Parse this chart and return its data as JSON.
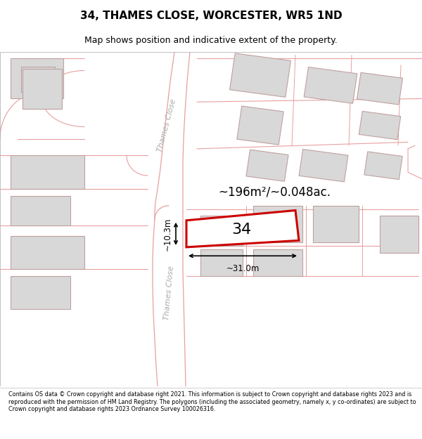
{
  "title": "34, THAMES CLOSE, WORCESTER, WR5 1ND",
  "subtitle": "Map shows position and indicative extent of the property.",
  "footer": "Contains OS data © Crown copyright and database right 2021. This information is subject to Crown copyright and database rights 2023 and is reproduced with the permission of HM Land Registry. The polygons (including the associated geometry, namely x, y co-ordinates) are subject to Crown copyright and database rights 2023 Ordnance Survey 100026316.",
  "bg_color": "#f5f5f5",
  "road_line_color": "#e8a0a0",
  "road_label_color": "#aaaaaa",
  "building_fill": "#d8d8d8",
  "building_edge": "#c0a0a0",
  "highlight_fill": "#ffffff",
  "highlight_edge": "#cc0000",
  "highlight_edge_width": 2.2,
  "area_label": "~196m²/~0.048ac.",
  "plot_number": "34",
  "dim_width": "~31.0m",
  "dim_height": "~10.3m",
  "road_label_upper": "Thames Close",
  "road_label_lower": "Thames Close",
  "title_fontsize": 11,
  "subtitle_fontsize": 9,
  "footer_fontsize": 5.8
}
